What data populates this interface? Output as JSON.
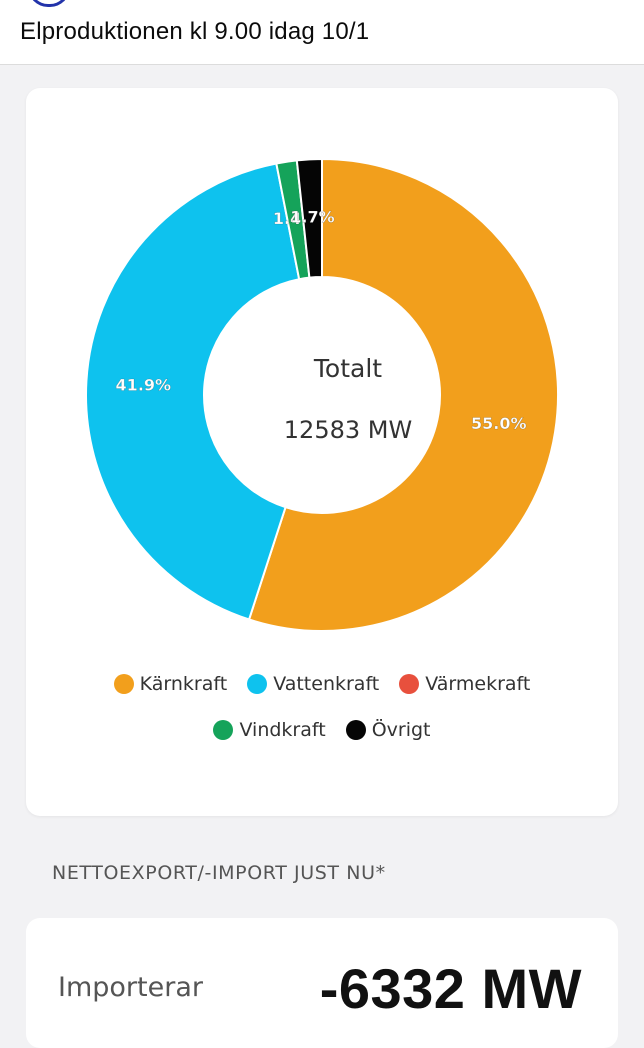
{
  "header": {
    "title": "Elproduktionen kl 9.00 idag 10/1"
  },
  "chart": {
    "center_title": "Totalt",
    "center_value": "12583 MW"
  },
  "chart_data": {
    "type": "pie",
    "title": "",
    "categories": [
      "Kärnkraft",
      "Vattenkraft",
      "Värmekraft",
      "Vindkraft",
      "Övrigt"
    ],
    "values": [
      55.0,
      41.9,
      0.0,
      1.4,
      1.7
    ],
    "labels": [
      "55.0%",
      "41.9%",
      "",
      "1.4%",
      "1.7%"
    ],
    "colors": [
      "#f29f1c",
      "#0ec2ee",
      "#e8503d",
      "#15a35a",
      "#050505"
    ],
    "donut": true,
    "legend_position": "bottom"
  },
  "legend": {
    "items": [
      {
        "label": "Kärnkraft",
        "color": "#f29f1c"
      },
      {
        "label": "Vattenkraft",
        "color": "#0ec2ee"
      },
      {
        "label": "Värmekraft",
        "color": "#e8503d"
      },
      {
        "label": "Vindkraft",
        "color": "#15a35a"
      },
      {
        "label": "Övrigt",
        "color": "#050505"
      }
    ]
  },
  "net": {
    "heading": "NETTOEXPORT/-IMPORT JUST NU*",
    "label": "Importerar",
    "value": "-6332 MW"
  }
}
